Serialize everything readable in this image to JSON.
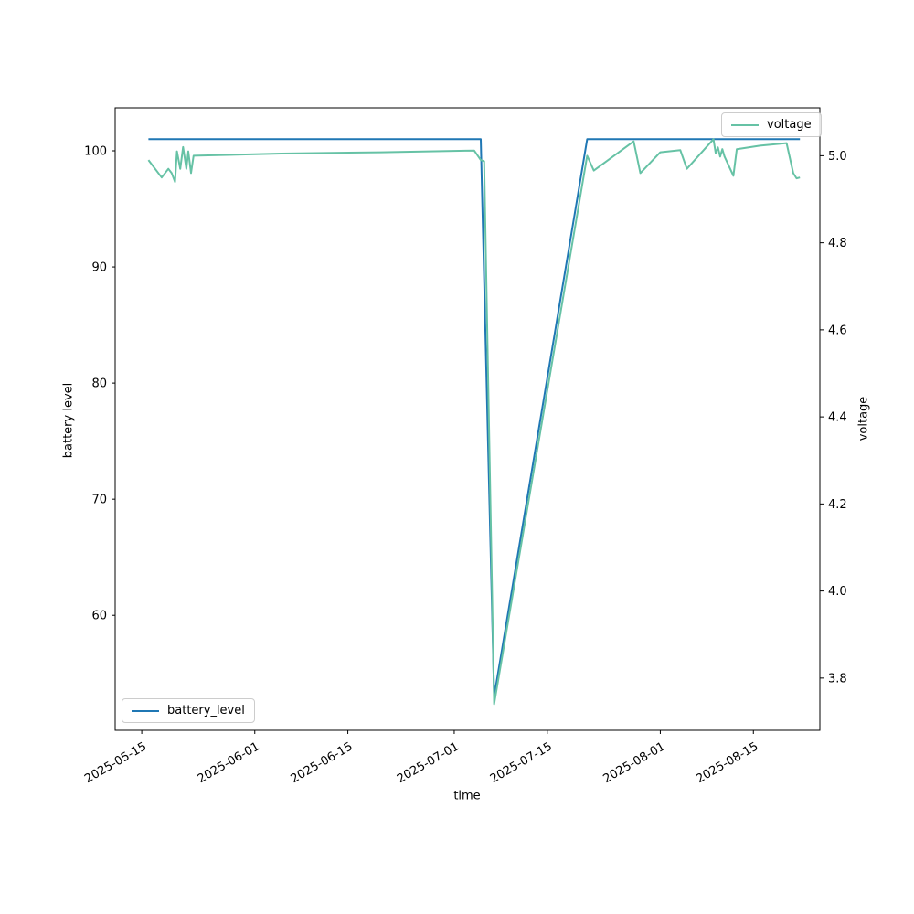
{
  "figure": {
    "background": "#ffffff",
    "frame_color": "#000000",
    "tick_color": "#000000"
  },
  "chart_data": {
    "type": "line",
    "title": "",
    "xlabel": "time",
    "grid": false,
    "x_axis": {
      "label": "time",
      "tick_labels": [
        "2025-05-15",
        "2025-06-01",
        "2025-06-15",
        "2025-07-01",
        "2025-07-15",
        "2025-08-01",
        "2025-08-15"
      ],
      "lim": [
        "2025-05-11",
        "2025-08-25"
      ],
      "tick_rotation_deg": 30
    },
    "y_axis_left": {
      "label": "battery level",
      "ticks": [
        60,
        70,
        80,
        90,
        100
      ],
      "lim": [
        50.1,
        103.7
      ]
    },
    "y_axis_right": {
      "label": "voltage",
      "ticks": [
        3.8,
        4.0,
        4.2,
        4.4,
        4.6,
        4.8,
        5.0
      ],
      "lim": [
        3.68,
        5.11
      ]
    },
    "series": [
      {
        "name": "battery_level",
        "color": "#1f77b4",
        "axis": "left",
        "legend_position": "lower left",
        "points": [
          [
            "2025-05-16",
            101
          ],
          [
            "2025-06-01",
            101
          ],
          [
            "2025-07-01",
            101
          ],
          [
            "2025-07-05",
            101
          ],
          [
            "2025-07-07",
            53
          ],
          [
            "2025-07-21",
            101
          ],
          [
            "2025-08-01",
            101
          ],
          [
            "2025-08-22",
            101
          ]
        ]
      },
      {
        "name": "voltage",
        "color": "#66c2a5",
        "axis": "right",
        "legend_position": "upper right",
        "points": [
          [
            "2025-05-16",
            4.99
          ],
          [
            "2025-05-18",
            4.95
          ],
          [
            "2025-05-19",
            4.97
          ],
          [
            "2025-05-19T12:00",
            4.96
          ],
          [
            "2025-05-20",
            4.94
          ],
          [
            "2025-05-20T07:00",
            5.01
          ],
          [
            "2025-05-20T19:00",
            4.97
          ],
          [
            "2025-05-21T05:00",
            5.02
          ],
          [
            "2025-05-21T17:00",
            4.97
          ],
          [
            "2025-05-22T00:00",
            5.01
          ],
          [
            "2025-05-22T10:00",
            4.96
          ],
          [
            "2025-05-22T19:00",
            5.0
          ],
          [
            "2025-06-05",
            5.005
          ],
          [
            "2025-06-20",
            5.008
          ],
          [
            "2025-07-04",
            5.012
          ],
          [
            "2025-07-05",
            4.99
          ],
          [
            "2025-07-05T12:00",
            4.987
          ],
          [
            "2025-07-07",
            3.74
          ],
          [
            "2025-07-21",
            5.0
          ],
          [
            "2025-07-22",
            4.966
          ],
          [
            "2025-07-28",
            5.033
          ],
          [
            "2025-07-29",
            4.96
          ],
          [
            "2025-08-01",
            5.008
          ],
          [
            "2025-08-04",
            5.013
          ],
          [
            "2025-08-05",
            4.97
          ],
          [
            "2025-08-09",
            5.038
          ],
          [
            "2025-08-09T08:00",
            5.006
          ],
          [
            "2025-08-09T16:00",
            5.019
          ],
          [
            "2025-08-10",
            4.998
          ],
          [
            "2025-08-10T08:00",
            5.015
          ],
          [
            "2025-08-10T16:00",
            4.998
          ],
          [
            "2025-08-12",
            4.954
          ],
          [
            "2025-08-12T12:00",
            5.015
          ],
          [
            "2025-08-16",
            5.023
          ],
          [
            "2025-08-20",
            5.029
          ],
          [
            "2025-08-21",
            4.96
          ],
          [
            "2025-08-21T12:00",
            4.948
          ],
          [
            "2025-08-22",
            4.95
          ]
        ]
      }
    ]
  }
}
